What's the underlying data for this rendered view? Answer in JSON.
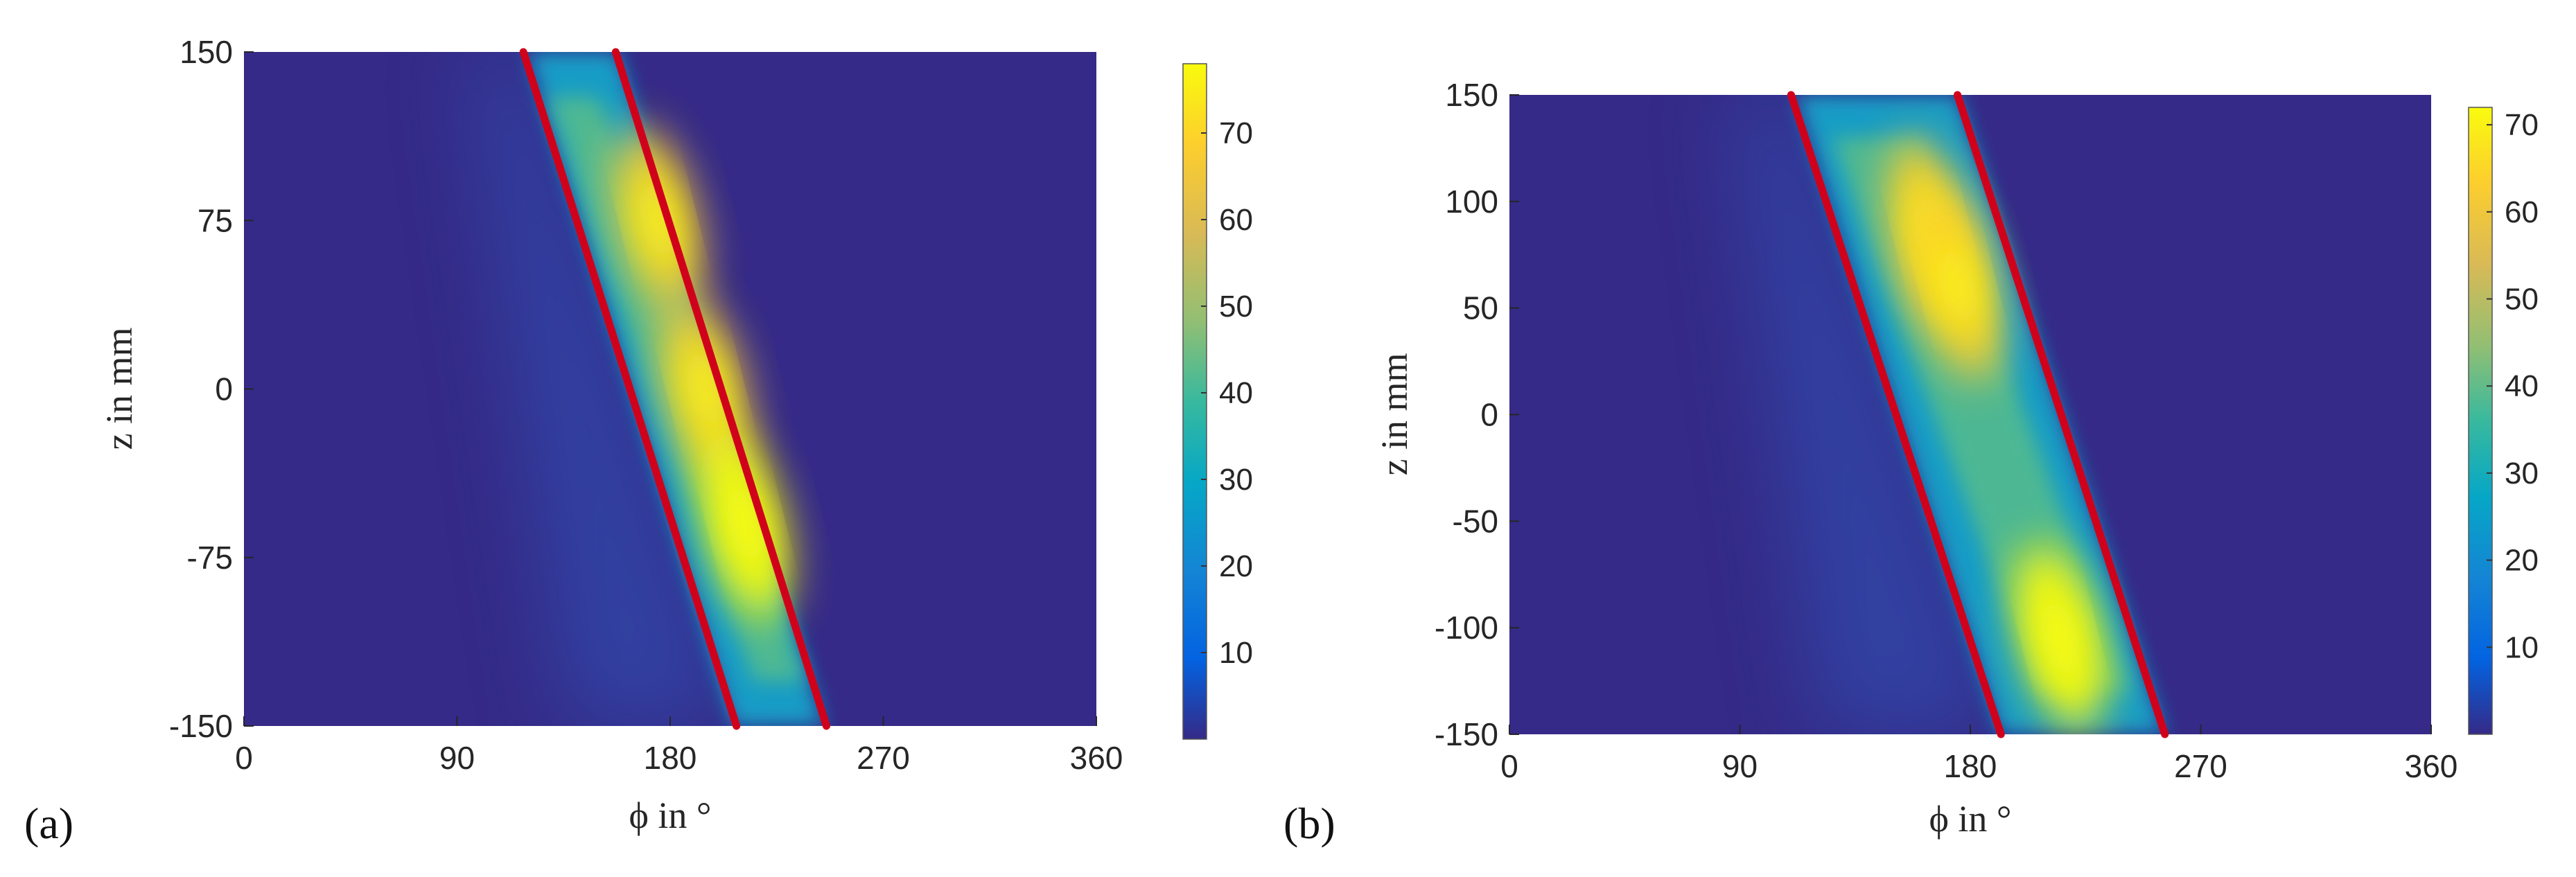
{
  "chart_data": [
    {
      "type": "heatmap",
      "panel_label": "(a)",
      "xlabel": "ϕ in °",
      "ylabel": "z in mm",
      "xlim": [
        0,
        360
      ],
      "ylim": [
        -150,
        150
      ],
      "xticks": [
        "0",
        "90",
        "180",
        "270",
        "360"
      ],
      "yticks": [
        "150",
        "75",
        "0",
        "-75",
        "-150"
      ],
      "colorbar": {
        "range": [
          0,
          78
        ],
        "ticks": [
          "10",
          "20",
          "30",
          "40",
          "50",
          "60",
          "70"
        ]
      },
      "background_color": "#352a87",
      "band": {
        "description_points": [
          {
            "z": 150,
            "phi_left": 120,
            "phi_right": 158
          },
          {
            "z": -150,
            "phi_left": 207,
            "phi_right": 245
          }
        ],
        "peak_value": 75,
        "hotspots": [
          {
            "phi": 175,
            "z": 75,
            "value": 68
          },
          {
            "phi": 195,
            "z": 0,
            "value": 72
          },
          {
            "phi": 212,
            "z": -60,
            "value": 75
          }
        ]
      },
      "boundary_lines": [
        {
          "color": "#d0021b",
          "points": [
            [
              118,
              150
            ],
            [
              208,
              -150
            ]
          ]
        },
        {
          "color": "#d0021b",
          "points": [
            [
              157,
              150
            ],
            [
              246,
              -150
            ]
          ]
        }
      ]
    },
    {
      "type": "heatmap",
      "panel_label": "(b)",
      "xlabel": "ϕ in °",
      "ylabel": "z in mm",
      "xlim": [
        0,
        360
      ],
      "ylim": [
        -150,
        150
      ],
      "xticks": [
        "0",
        "90",
        "180",
        "270",
        "360"
      ],
      "yticks": [
        "150",
        "100",
        "50",
        "0",
        "-50",
        "-100",
        "-150"
      ],
      "colorbar": {
        "range": [
          0,
          72
        ],
        "ticks": [
          "10",
          "20",
          "30",
          "40",
          "50",
          "60",
          "70"
        ]
      },
      "background_color": "#352a87",
      "band": {
        "description_points": [
          {
            "z": 150,
            "phi_left": 112,
            "phi_right": 175
          },
          {
            "z": -150,
            "phi_left": 192,
            "phi_right": 256
          }
        ],
        "peak_value": 72,
        "hotspots": [
          {
            "phi": 165,
            "z": 85,
            "value": 65
          },
          {
            "phi": 175,
            "z": 60,
            "value": 62
          },
          {
            "phi": 215,
            "z": -105,
            "value": 72
          }
        ]
      },
      "boundary_lines": [
        {
          "color": "#d0021b",
          "points": [
            [
              110,
              150
            ],
            [
              192,
              -150
            ]
          ]
        },
        {
          "color": "#d0021b",
          "points": [
            [
              175,
              150
            ],
            [
              256,
              -150
            ]
          ]
        }
      ]
    }
  ]
}
